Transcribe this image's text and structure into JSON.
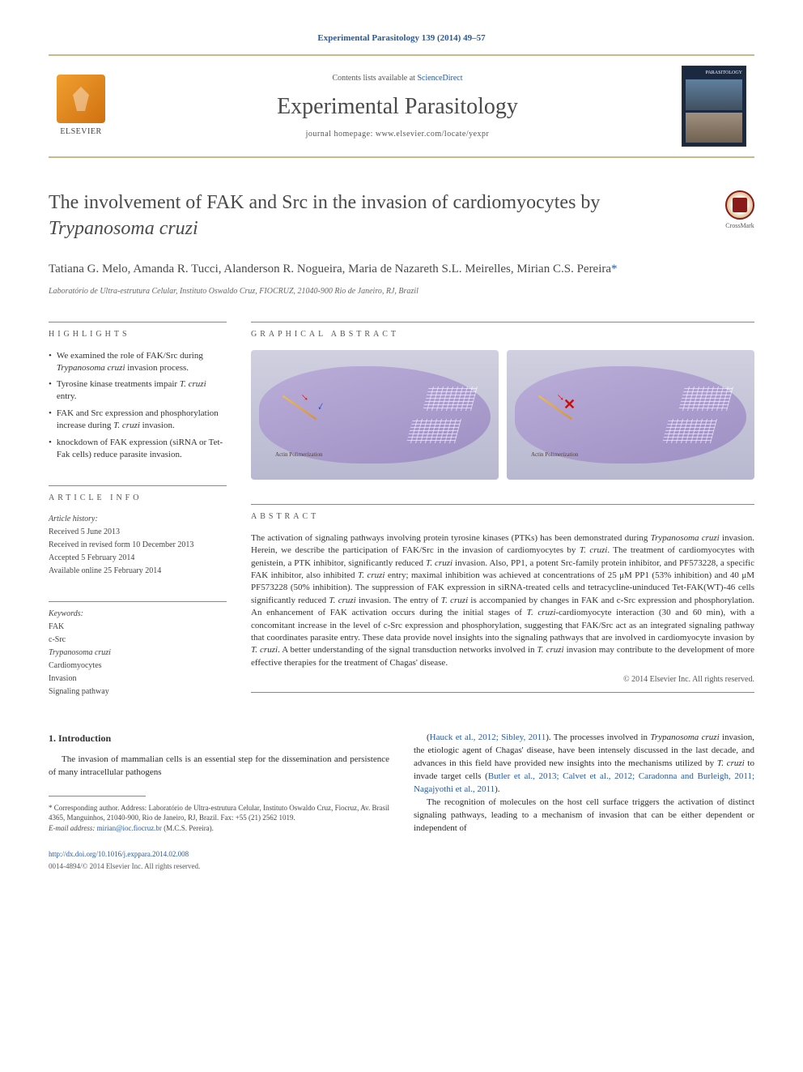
{
  "citation": "Experimental Parasitology 139 (2014) 49–57",
  "banner": {
    "contents_prefix": "Contents lists available at ",
    "contents_link": "ScienceDirect",
    "journal_name": "Experimental Parasitology",
    "homepage_prefix": "journal homepage: ",
    "homepage_url": "www.elsevier.com/locate/yexpr",
    "publisher": "ELSEVIER",
    "cover_caption": "PARASITOLOGY"
  },
  "article": {
    "title_pre": "The involvement of FAK and Src in the invasion of cardiomyocytes by ",
    "title_italic": "Trypanosoma cruzi",
    "crossmark": "CrossMark",
    "authors": "Tatiana G. Melo, Amanda R. Tucci, Alanderson R. Nogueira, Maria de Nazareth S.L. Meirelles, Mirian C.S. Pereira",
    "corr_mark": "*",
    "affiliation": "Laboratório de Ultra-estrutura Celular, Instituto Oswaldo Cruz, FIOCRUZ, 21040-900 Rio de Janeiro, RJ, Brazil"
  },
  "highlights": {
    "label": "HIGHLIGHTS",
    "items": [
      {
        "pre": "We examined the role of FAK/Src during ",
        "it": "Trypanosoma cruzi",
        "post": " invasion process."
      },
      {
        "pre": "Tyrosine kinase treatments impair ",
        "it": "T. cruzi",
        "post": " entry."
      },
      {
        "pre": "FAK and Src expression and phosphorylation increase during ",
        "it": "T. cruzi",
        "post": " invasion."
      },
      {
        "pre": "knockdown of FAK expression (siRNA or Tet-Fak cells) reduce parasite invasion.",
        "it": "",
        "post": ""
      }
    ]
  },
  "article_info": {
    "label": "ARTICLE INFO",
    "history_label": "Article history:",
    "received": "Received 5 June 2013",
    "revised": "Received in revised form 10 December 2013",
    "accepted": "Accepted 5 February 2014",
    "online": "Available online 25 February 2014"
  },
  "keywords": {
    "label": "Keywords:",
    "items": [
      "FAK",
      "c-Src",
      "Trypanosoma cruzi",
      "Cardiomyocytes",
      "Invasion",
      "Signaling pathway"
    ],
    "italic_idx": 2
  },
  "graphical": {
    "label": "GRAPHICAL ABSTRACT",
    "actin_label": "Actin Polimerization"
  },
  "abstract": {
    "label": "ABSTRACT",
    "text": "The activation of signaling pathways involving protein tyrosine kinases (PTKs) has been demonstrated during {it}Trypanosoma cruzi{/it} invasion. Herein, we describe the participation of FAK/Src in the invasion of cardiomyocytes by {it}T. cruzi{/it}. The treatment of cardiomyocytes with genistein, a PTK inhibitor, significantly reduced {it}T. cruzi{/it} invasion. Also, PP1, a potent Src-family protein inhibitor, and PF573228, a specific FAK inhibitor, also inhibited {it}T. cruzi{/it} entry; maximal inhibition was achieved at concentrations of 25 μM PP1 (53% inhibition) and 40 μM PF573228 (50% inhibition). The suppression of FAK expression in siRNA-treated cells and tetracycline-uninduced Tet-FAK(WT)-46 cells significantly reduced {it}T. cruzi{/it} invasion. The entry of {it}T. cruzi{/it} is accompanied by changes in FAK and c-Src expression and phosphorylation. An enhancement of FAK activation occurs during the initial stages of {it}T. cruzi{/it}-cardiomyocyte interaction (30 and 60 min), with a concomitant increase in the level of c-Src expression and phosphorylation, suggesting that FAK/Src act as an integrated signaling pathway that coordinates parasite entry. These data provide novel insights into the signaling pathways that are involved in cardiomyocyte invasion by {it}T. cruzi{/it}. A better understanding of the signal transduction networks involved in {it}T. cruzi{/it} invasion may contribute to the development of more effective therapies for the treatment of Chagas' disease.",
    "copyright": "© 2014 Elsevier Inc. All rights reserved."
  },
  "body": {
    "heading": "1. Introduction",
    "p1": "The invasion of mammalian cells is an essential step for the dissemination and persistence of many intracellular pathogens",
    "p2_pre": "(",
    "p2_cite1": "Hauck et al., 2012; Sibley, 2011",
    "p2_mid1": "). The processes involved in ",
    "p2_it1": "Trypanosoma cruzi",
    "p2_mid2": " invasion, the etiologic agent of Chagas' disease, have been intensely discussed in the last decade, and advances in this field have provided new insights into the mechanisms utilized by ",
    "p2_it2": "T. cruzi",
    "p2_mid3": " to invade target cells (",
    "p2_cite2": "Butler et al., 2013; Calvet et al., 2012; Caradonna and Burleigh, 2011; Nagajyothi et al., 2011",
    "p2_post": ").",
    "p3": "The recognition of molecules on the host cell surface triggers the activation of distinct signaling pathways, leading to a mechanism of invasion that can be either dependent or independent of"
  },
  "footnote": {
    "corr": "* Corresponding author. Address: Laboratório de Ultra-estrutura Celular, Instituto Oswaldo Cruz, Fiocruz, Av. Brasil 4365, Manguinhos, 21040-900, Rio de Janeiro, RJ, Brazil. Fax: +55 (21) 2562 1019.",
    "email_label": "E-mail address: ",
    "email": "mirian@ioc.fiocruz.br",
    "email_suffix": " (M.C.S. Pereira)."
  },
  "footer": {
    "doi": "http://dx.doi.org/10.1016/j.exppara.2014.02.008",
    "copy": "0014-4894/© 2014 Elsevier Inc. All rights reserved."
  },
  "colors": {
    "link": "#2659a6",
    "border": "#c9b88a",
    "text": "#2a2a2a"
  }
}
